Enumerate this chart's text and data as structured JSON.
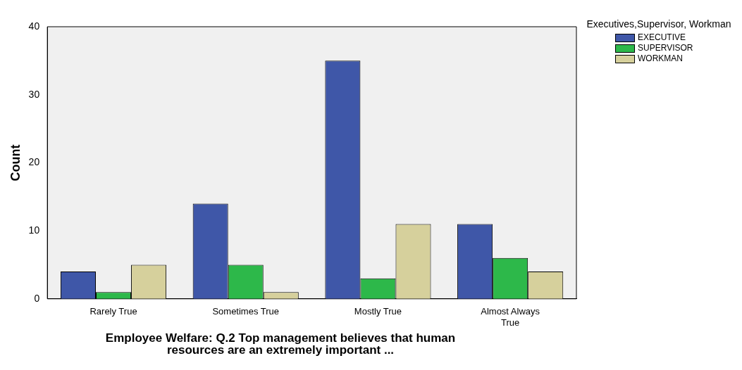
{
  "chart_data": {
    "type": "bar",
    "categories": [
      "Rarely True",
      "Sometimes True",
      "Mostly True",
      "Almost Always True"
    ],
    "series": [
      {
        "name": "EXECUTIVE",
        "color": "#3f57a8",
        "values": [
          4,
          14,
          35,
          11
        ]
      },
      {
        "name": "SUPERVISOR",
        "color": "#2db84a",
        "values": [
          1,
          5,
          3,
          6
        ]
      },
      {
        "name": "WORKMAN",
        "color": "#d6d09c",
        "values": [
          5,
          1,
          11,
          4
        ]
      }
    ],
    "ylabel": "Count",
    "xlabel": "Employee Welfare: Q.2 Top management believes that human resources are an extremely important ...",
    "legend_title": "Executives,Supervisor, Workman",
    "legend": "top right",
    "grid": false,
    "ylim": [
      0,
      40
    ],
    "yticks": [
      0,
      10,
      20,
      30,
      40
    ]
  }
}
